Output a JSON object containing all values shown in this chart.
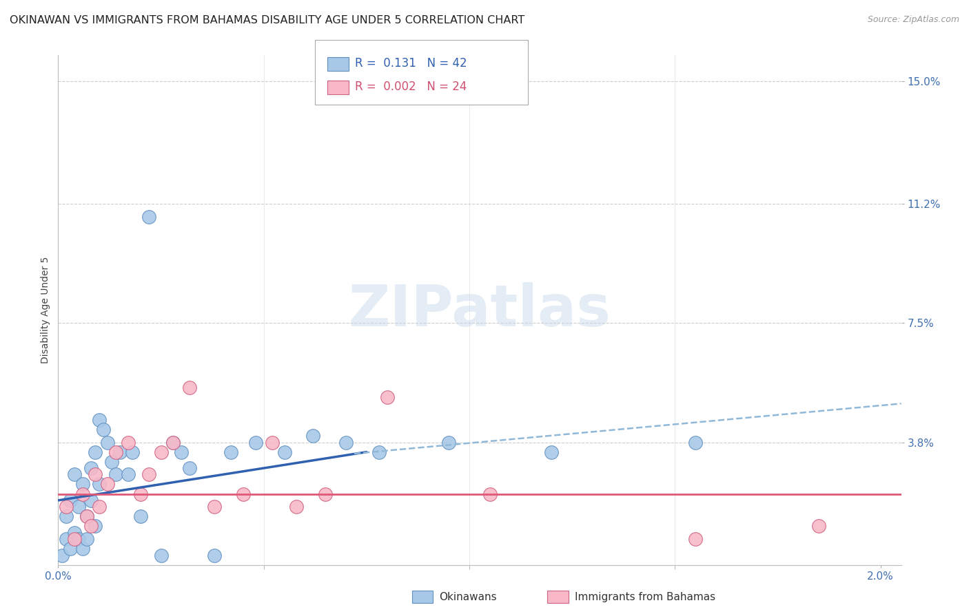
{
  "title": "OKINAWAN VS IMMIGRANTS FROM BAHAMAS DISABILITY AGE UNDER 5 CORRELATION CHART",
  "source": "Source: ZipAtlas.com",
  "ylabel": "Disability Age Under 5",
  "xlim": [
    0.0,
    2.05
  ],
  "ylim": [
    0.0,
    15.8
  ],
  "okinawan_color": "#a8c8e8",
  "bahamas_color": "#f8b8c8",
  "okinawan_edge": "#6090c0",
  "bahamas_edge": "#d06080",
  "trend_okinawan_color": "#3060b0",
  "trend_bahamas_color": "#e05878",
  "trend_dashed_color": "#90b8d8",
  "legend_R1": "0.131",
  "legend_N1": "42",
  "legend_R2": "0.002",
  "legend_N2": "24",
  "watermark_text": "ZIPatlas",
  "grid_color": "#cccccc",
  "background_color": "#ffffff",
  "title_fontsize": 11.5,
  "axis_label_fontsize": 10,
  "tick_fontsize": 11,
  "source_fontsize": 9,
  "okinawan_x": [
    0.01,
    0.02,
    0.02,
    0.03,
    0.03,
    0.04,
    0.04,
    0.05,
    0.05,
    0.06,
    0.06,
    0.07,
    0.07,
    0.08,
    0.08,
    0.09,
    0.09,
    0.1,
    0.1,
    0.11,
    0.12,
    0.13,
    0.14,
    0.15,
    0.17,
    0.18,
    0.2,
    0.22,
    0.25,
    0.28,
    0.3,
    0.32,
    0.38,
    0.42,
    0.48,
    0.55,
    0.62,
    0.7,
    0.78,
    0.95,
    1.2,
    1.55
  ],
  "okinawan_y": [
    0.3,
    0.8,
    1.5,
    0.5,
    2.0,
    1.0,
    2.8,
    0.8,
    1.8,
    0.5,
    2.5,
    1.5,
    0.8,
    2.0,
    3.0,
    1.2,
    3.5,
    2.5,
    4.5,
    4.2,
    3.8,
    3.2,
    2.8,
    3.5,
    2.8,
    3.5,
    1.5,
    10.8,
    0.3,
    3.8,
    3.5,
    3.0,
    0.3,
    3.5,
    3.8,
    3.5,
    4.0,
    3.8,
    3.5,
    3.8,
    3.5,
    3.8
  ],
  "bahamas_x": [
    0.02,
    0.04,
    0.06,
    0.07,
    0.08,
    0.09,
    0.1,
    0.12,
    0.14,
    0.17,
    0.2,
    0.22,
    0.25,
    0.28,
    0.32,
    0.38,
    0.45,
    0.52,
    0.58,
    0.65,
    0.8,
    1.05,
    1.55,
    1.85
  ],
  "bahamas_y": [
    1.8,
    0.8,
    2.2,
    1.5,
    1.2,
    2.8,
    1.8,
    2.5,
    3.5,
    3.8,
    2.2,
    2.8,
    3.5,
    3.8,
    5.5,
    1.8,
    2.2,
    3.8,
    1.8,
    2.2,
    5.2,
    2.2,
    0.8,
    1.2
  ],
  "y_tick_vals": [
    3.8,
    7.5,
    11.2,
    15.0
  ],
  "y_tick_labels": [
    "3.8%",
    "7.5%",
    "11.2%",
    "15.0%"
  ],
  "x_tick_vals": [
    0.0,
    2.0
  ],
  "x_tick_labels": [
    "0.0%",
    "2.0%"
  ]
}
